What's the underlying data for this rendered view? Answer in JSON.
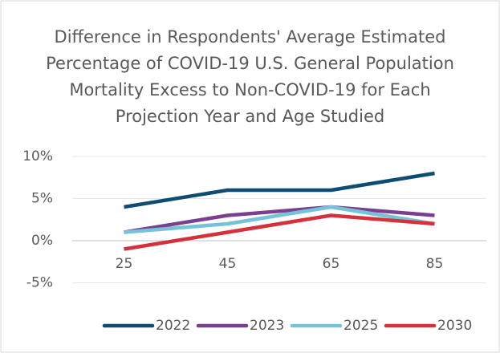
{
  "chart_data": {
    "type": "line",
    "title": "Difference in Respondents' Average Estimated Percentage of COVID-19 U.S. General Population Mortality Excess to Non-COVID-19 for Each Projection Year and Age Studied",
    "categories": [
      "25",
      "45",
      "65",
      "85"
    ],
    "series": [
      {
        "name": "2022",
        "color": "#0f4c72",
        "values": [
          4,
          6,
          6,
          8
        ]
      },
      {
        "name": "2023",
        "color": "#7a3f8e",
        "values": [
          1,
          3,
          4,
          3
        ]
      },
      {
        "name": "2025",
        "color": "#74c3d8",
        "values": [
          1,
          2,
          4,
          2
        ]
      },
      {
        "name": "2030",
        "color": "#d5313b",
        "values": [
          -1,
          1,
          3,
          2
        ]
      }
    ],
    "ylim": [
      -5,
      10
    ],
    "yticks": [
      {
        "value": -5,
        "label": "-5%"
      },
      {
        "value": 0,
        "label": "0%"
      },
      {
        "value": 5,
        "label": "5%"
      },
      {
        "value": 10,
        "label": "10%"
      }
    ],
    "grid": true,
    "legend": "bottom"
  }
}
